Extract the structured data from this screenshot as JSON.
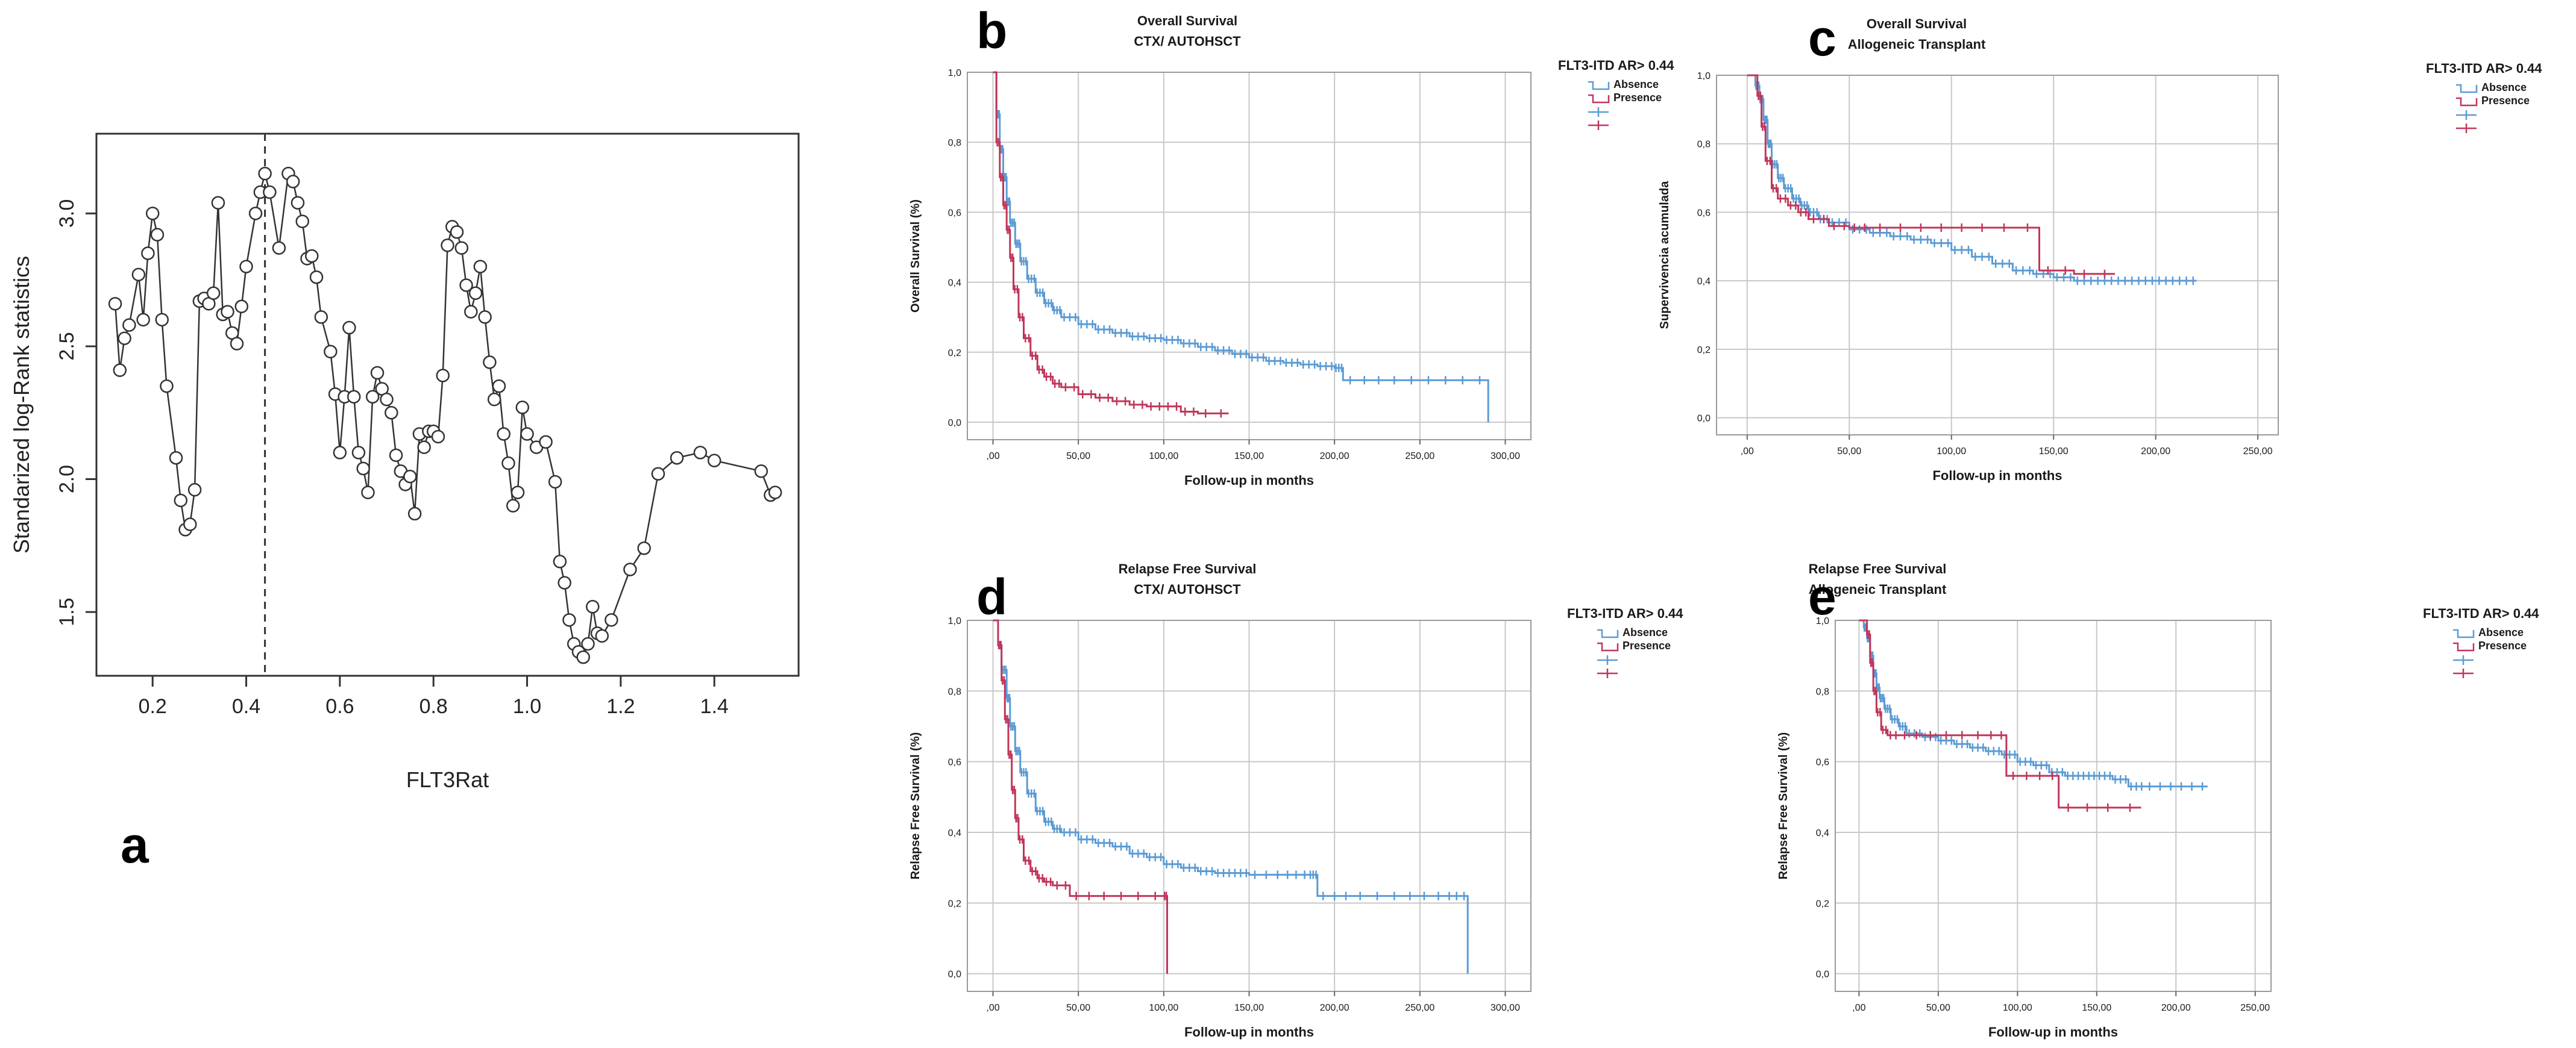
{
  "figure": {
    "background": "#ffffff",
    "colors": {
      "absence": "#5b9bd5",
      "presence": "#c0365a",
      "grid": "#c8c8c8",
      "axis": "#222222"
    }
  },
  "chart_data": [
    {
      "id": "a",
      "letter": "a",
      "type": "line",
      "marker": "circle",
      "title": "",
      "xlabel": "FLT3Rat",
      "ylabel": "Standarized log-Rank statistics",
      "xlim": [
        0.08,
        1.58
      ],
      "ylim": [
        1.26,
        3.3
      ],
      "xticks": [
        0.2,
        0.4,
        0.6,
        0.8,
        1.0,
        1.2,
        1.4
      ],
      "xtick_labels": [
        "0.2",
        "0.4",
        "0.6",
        "0.8",
        "1.0",
        "1.2",
        "1.4"
      ],
      "yticks": [
        1.5,
        2.0,
        2.5,
        3.0
      ],
      "ytick_labels": [
        "1.5",
        "2.0",
        "2.5",
        "3.0"
      ],
      "cutoff_x": 0.44,
      "x": [
        0.12,
        0.13,
        0.14,
        0.15,
        0.17,
        0.18,
        0.19,
        0.2,
        0.21,
        0.22,
        0.23,
        0.25,
        0.26,
        0.27,
        0.28,
        0.29,
        0.3,
        0.31,
        0.32,
        0.33,
        0.34,
        0.35,
        0.36,
        0.37,
        0.38,
        0.39,
        0.4,
        0.42,
        0.43,
        0.44,
        0.45,
        0.47,
        0.49,
        0.5,
        0.51,
        0.52,
        0.53,
        0.54,
        0.55,
        0.56,
        0.58,
        0.59,
        0.6,
        0.61,
        0.62,
        0.63,
        0.64,
        0.65,
        0.66,
        0.67,
        0.68,
        0.69,
        0.7,
        0.71,
        0.72,
        0.73,
        0.74,
        0.75,
        0.76,
        0.77,
        0.78,
        0.79,
        0.8,
        0.81,
        0.82,
        0.83,
        0.84,
        0.85,
        0.86,
        0.87,
        0.88,
        0.89,
        0.9,
        0.91,
        0.92,
        0.93,
        0.94,
        0.95,
        0.96,
        0.97,
        0.98,
        0.99,
        1.0,
        1.02,
        1.04,
        1.06,
        1.07,
        1.08,
        1.09,
        1.1,
        1.11,
        1.12,
        1.13,
        1.14,
        1.15,
        1.16,
        1.18,
        1.22,
        1.25,
        1.28,
        1.32,
        1.37,
        1.4,
        1.5,
        1.52,
        1.53
      ],
      "values": [
        2.66,
        2.41,
        2.53,
        2.58,
        2.77,
        2.6,
        2.85,
        3.0,
        2.92,
        2.6,
        2.35,
        2.08,
        1.92,
        1.81,
        1.83,
        1.96,
        2.67,
        2.68,
        2.66,
        2.7,
        3.04,
        2.62,
        2.63,
        2.55,
        2.51,
        2.65,
        2.8,
        3.0,
        3.08,
        3.15,
        3.08,
        2.87,
        3.15,
        3.12,
        3.04,
        2.97,
        2.83,
        2.84,
        2.76,
        2.61,
        2.48,
        2.32,
        2.1,
        2.31,
        2.57,
        2.31,
        2.1,
        2.04,
        1.95,
        2.31,
        2.4,
        2.34,
        2.3,
        2.25,
        2.09,
        2.03,
        1.98,
        2.01,
        1.87,
        2.17,
        2.12,
        2.18,
        2.18,
        2.16,
        2.39,
        2.88,
        2.95,
        2.93,
        2.87,
        2.73,
        2.63,
        2.7,
        2.8,
        2.61,
        2.44,
        2.3,
        2.35,
        2.17,
        2.06,
        1.9,
        1.95,
        2.27,
        2.17,
        2.12,
        2.14,
        1.99,
        1.69,
        1.61,
        1.47,
        1.38,
        1.35,
        1.33,
        1.38,
        1.52,
        1.42,
        1.41,
        1.47,
        1.66,
        1.74,
        2.02,
        2.08,
        2.1,
        2.07,
        2.03,
        1.94,
        1.95
      ]
    },
    {
      "id": "b",
      "letter": "b",
      "type": "line",
      "subtype": "kaplan-meier step",
      "title": "Overall Survival",
      "subtitle": "CTX/ AUTOHSCT",
      "xlabel": "Follow-up in months",
      "ylabel": "Overall Survival (%)",
      "xlim": [
        -15,
        315
      ],
      "ylim": [
        -0.05,
        1.0
      ],
      "xticks": [
        0,
        50,
        100,
        150,
        200,
        250,
        300
      ],
      "xtick_labels": [
        ",00",
        "50,00",
        "100,00",
        "150,00",
        "200,00",
        "250,00",
        "300,00"
      ],
      "yticks": [
        0,
        0.2,
        0.4,
        0.6,
        0.8,
        1.0
      ],
      "ytick_labels": [
        "0,0",
        "0,2",
        "0,4",
        "0,6",
        "0,8",
        "1,0"
      ],
      "legend_title": "FLT3-ITD AR> 0.44",
      "legend_labels": [
        "Absence",
        "Presence"
      ],
      "series": [
        {
          "name": "Absence",
          "x": [
            0,
            2,
            4,
            6,
            8,
            10,
            13,
            16,
            20,
            25,
            30,
            35,
            40,
            50,
            60,
            70,
            80,
            90,
            100,
            110,
            120,
            130,
            140,
            150,
            160,
            170,
            180,
            190,
            200,
            205,
            230,
            260,
            290
          ],
          "y": [
            1.0,
            0.88,
            0.78,
            0.7,
            0.63,
            0.57,
            0.51,
            0.46,
            0.41,
            0.37,
            0.34,
            0.32,
            0.3,
            0.28,
            0.265,
            0.255,
            0.245,
            0.24,
            0.235,
            0.225,
            0.215,
            0.205,
            0.195,
            0.185,
            0.175,
            0.17,
            0.165,
            0.16,
            0.155,
            0.12,
            0.12,
            0.12,
            0.0
          ]
        },
        {
          "name": "Presence",
          "x": [
            0,
            2,
            4,
            6,
            8,
            10,
            12,
            15,
            18,
            22,
            26,
            30,
            35,
            40,
            50,
            60,
            70,
            80,
            90,
            100,
            110,
            120,
            138
          ],
          "y": [
            1.0,
            0.8,
            0.7,
            0.62,
            0.55,
            0.47,
            0.38,
            0.3,
            0.24,
            0.19,
            0.15,
            0.13,
            0.11,
            0.1,
            0.08,
            0.07,
            0.06,
            0.05,
            0.045,
            0.045,
            0.03,
            0.025,
            0.025
          ]
        }
      ]
    },
    {
      "id": "c",
      "letter": "c",
      "type": "line",
      "subtype": "kaplan-meier step",
      "title": "Overall Survival",
      "subtitle": "Allogeneic Transplant",
      "xlabel": "Follow-up in months",
      "ylabel": "Supervivencia acumulada",
      "xlim": [
        -15,
        260
      ],
      "ylim": [
        -0.05,
        1.0
      ],
      "xticks": [
        0,
        50,
        100,
        150,
        200,
        250
      ],
      "xtick_labels": [
        ",00",
        "50,00",
        "100,00",
        "150,00",
        "200,00",
        "250,00"
      ],
      "yticks": [
        0,
        0.2,
        0.4,
        0.6,
        0.8,
        1.0
      ],
      "ytick_labels": [
        "0,0",
        "0,2",
        "0,4",
        "0,6",
        "0,8",
        "1,0"
      ],
      "legend_title": "FLT3-ITD AR> 0.44",
      "legend_labels": [
        "Absence",
        "Presence"
      ],
      "series": [
        {
          "name": "Absence",
          "x": [
            0,
            4,
            6,
            8,
            10,
            12,
            15,
            18,
            22,
            26,
            30,
            35,
            40,
            50,
            60,
            70,
            80,
            90,
            100,
            110,
            120,
            130,
            140,
            150,
            160,
            170,
            180,
            190,
            200,
            210,
            220
          ],
          "y": [
            1.0,
            0.97,
            0.93,
            0.87,
            0.8,
            0.74,
            0.7,
            0.67,
            0.64,
            0.62,
            0.6,
            0.58,
            0.57,
            0.55,
            0.54,
            0.53,
            0.52,
            0.51,
            0.49,
            0.47,
            0.45,
            0.43,
            0.42,
            0.41,
            0.4,
            0.4,
            0.4,
            0.4,
            0.4,
            0.4,
            0.4
          ]
        },
        {
          "name": "Presence",
          "x": [
            0,
            5,
            7,
            9,
            12,
            15,
            20,
            25,
            30,
            40,
            50,
            60,
            80,
            100,
            120,
            143,
            160,
            180
          ],
          "y": [
            1.0,
            0.94,
            0.85,
            0.75,
            0.67,
            0.64,
            0.62,
            0.6,
            0.58,
            0.56,
            0.555,
            0.555,
            0.555,
            0.555,
            0.555,
            0.43,
            0.42,
            0.42
          ]
        }
      ]
    },
    {
      "id": "d",
      "letter": "d",
      "type": "line",
      "subtype": "kaplan-meier step",
      "title": "Relapse Free Survival",
      "subtitle": "CTX/ AUTOHSCT",
      "xlabel": "Follow-up in months",
      "ylabel": "Relapse Free Survival (%)",
      "xlim": [
        -15,
        315
      ],
      "ylim": [
        -0.05,
        1.0
      ],
      "xticks": [
        0,
        50,
        100,
        150,
        200,
        250,
        300
      ],
      "xtick_labels": [
        ",00",
        "50,00",
        "100,00",
        "150,00",
        "200,00",
        "250,00",
        "300,00"
      ],
      "yticks": [
        0,
        0.2,
        0.4,
        0.6,
        0.8,
        1.0
      ],
      "ytick_labels": [
        "0,0",
        "0,2",
        "0,4",
        "0,6",
        "0,8",
        "1,0"
      ],
      "legend_title": "FLT3-ITD AR> 0.44",
      "legend_labels": [
        "Absence",
        "Presence"
      ],
      "series": [
        {
          "name": "Absence",
          "x": [
            0,
            3,
            5,
            8,
            10,
            13,
            16,
            20,
            25,
            30,
            35,
            40,
            50,
            60,
            70,
            80,
            90,
            100,
            110,
            120,
            130,
            140,
            150,
            170,
            185,
            190,
            210,
            240,
            265,
            278
          ],
          "y": [
            1.0,
            0.93,
            0.86,
            0.78,
            0.7,
            0.63,
            0.57,
            0.51,
            0.46,
            0.43,
            0.41,
            0.4,
            0.38,
            0.37,
            0.36,
            0.34,
            0.33,
            0.31,
            0.3,
            0.29,
            0.285,
            0.285,
            0.28,
            0.28,
            0.28,
            0.22,
            0.22,
            0.22,
            0.22,
            0.0
          ]
        },
        {
          "name": "Presence",
          "x": [
            0,
            3,
            5,
            7,
            9,
            11,
            13,
            15,
            18,
            22,
            26,
            30,
            35,
            45,
            60,
            80,
            100,
            102
          ],
          "y": [
            1.0,
            0.93,
            0.83,
            0.72,
            0.62,
            0.52,
            0.44,
            0.38,
            0.32,
            0.29,
            0.27,
            0.26,
            0.25,
            0.22,
            0.22,
            0.22,
            0.22,
            0.0
          ]
        }
      ]
    },
    {
      "id": "e",
      "letter": "e",
      "type": "line",
      "subtype": "kaplan-meier step",
      "title": "Relapse Free Survival",
      "subtitle": "Allogeneic Transplant",
      "xlabel": "Follow-up in months",
      "ylabel": "Relapse Free Survival (%)",
      "xlim": [
        -15,
        260
      ],
      "ylim": [
        -0.05,
        1.0
      ],
      "xticks": [
        0,
        50,
        100,
        150,
        200,
        250
      ],
      "xtick_labels": [
        ",00",
        "50,00",
        "100,00",
        "150,00",
        "200,00",
        "250,00"
      ],
      "yticks": [
        0,
        0.2,
        0.4,
        0.6,
        0.8,
        1.0
      ],
      "ytick_labels": [
        "0,0",
        "0,2",
        "0,4",
        "0,6",
        "0,8",
        "1,0"
      ],
      "legend_title": "FLT3-ITD AR> 0.44",
      "legend_labels": [
        "Absence",
        "Presence"
      ],
      "series": [
        {
          "name": "Absence",
          "x": [
            0,
            3,
            5,
            7,
            9,
            11,
            13,
            16,
            20,
            25,
            30,
            40,
            50,
            60,
            70,
            80,
            90,
            100,
            110,
            120,
            130,
            140,
            150,
            160,
            170,
            180,
            200,
            220
          ],
          "y": [
            1.0,
            0.98,
            0.95,
            0.9,
            0.85,
            0.81,
            0.78,
            0.75,
            0.72,
            0.7,
            0.68,
            0.67,
            0.66,
            0.65,
            0.64,
            0.63,
            0.62,
            0.6,
            0.59,
            0.57,
            0.56,
            0.56,
            0.56,
            0.55,
            0.53,
            0.53,
            0.53,
            0.53
          ]
        },
        {
          "name": "Presence",
          "x": [
            0,
            5,
            7,
            9,
            11,
            14,
            18,
            25,
            40,
            60,
            80,
            93,
            110,
            126,
            150,
            178
          ],
          "y": [
            1.0,
            0.96,
            0.88,
            0.8,
            0.74,
            0.69,
            0.675,
            0.675,
            0.675,
            0.675,
            0.675,
            0.56,
            0.56,
            0.47,
            0.47,
            0.47
          ]
        }
      ]
    }
  ]
}
